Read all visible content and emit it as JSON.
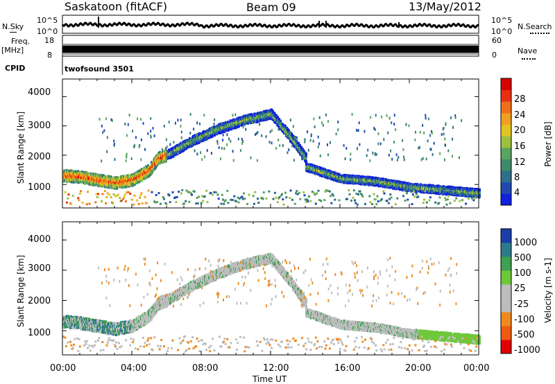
{
  "header": {
    "station": "Saskatoon (fitACF)",
    "beam": "Beam 09",
    "date": "13/May/2012"
  },
  "top_panels": {
    "nsky_label": "N.Sky",
    "nsky_ticks": [
      "10^5",
      "10^0"
    ],
    "nsearch_label": "N.Search",
    "nsearch_ticks": [
      "10^5",
      "10^0"
    ],
    "freq_label": "Freq.",
    "freq_unit": "[MHz]",
    "freq_ticks": [
      "18",
      "8"
    ],
    "nave_label": "Nave",
    "nave_ticks": [
      "60",
      "0"
    ],
    "cpid_label": "CPID",
    "cpid_text": "twofsound 3501"
  },
  "chart_data": [
    {
      "type": "heatmap",
      "name": "power-panel",
      "xlabel": "Time UT",
      "ylabel": "Slant Range [km]",
      "xticks": [
        "00:00",
        "04:00",
        "08:00",
        "12:00",
        "16:00",
        "20:00",
        "00:00"
      ],
      "xlim_hours": [
        0,
        24
      ],
      "yticks": [
        "4000",
        "3000",
        "2000",
        "1000"
      ],
      "ylim": [
        200,
        4600
      ],
      "colorbar": {
        "label": "Power [dB]",
        "ticks": [
          "28",
          "24",
          "20",
          "16",
          "12",
          "8",
          "4"
        ],
        "range": [
          0,
          32
        ],
        "colors": [
          "#1020e0",
          "#204ab0",
          "#2f6e8a",
          "#3f8a6a",
          "#5aa360",
          "#9cc040",
          "#e3c420",
          "#f0a020",
          "#f07018",
          "#e83010",
          "#d80000"
        ]
      },
      "features": [
        {
          "desc": "band",
          "t": [
            0,
            1,
            2,
            3,
            4,
            5,
            5.5,
            6
          ],
          "r": [
            1300,
            1250,
            1150,
            1050,
            1150,
            1500,
            1900,
            2000
          ],
          "strength": "high"
        },
        {
          "desc": "arc",
          "t": [
            6,
            7.5,
            9,
            10.5,
            12,
            13,
            14
          ],
          "r": [
            2000,
            2500,
            2900,
            3200,
            3400,
            2700,
            1900
          ],
          "strength": "mid"
        },
        {
          "desc": "lower-band",
          "t": [
            14,
            16,
            18,
            20,
            22,
            24
          ],
          "r": [
            1600,
            1200,
            1100,
            900,
            800,
            700
          ],
          "strength": "mid"
        }
      ]
    },
    {
      "type": "heatmap",
      "name": "velocity-panel",
      "xlabel": "Time UT",
      "ylabel": "Slant Range [km]",
      "xticks": [
        "00:00",
        "04:00",
        "08:00",
        "12:00",
        "16:00",
        "20:00",
        "00:00"
      ],
      "xlim_hours": [
        0,
        24
      ],
      "yticks": [
        "4000",
        "3000",
        "2000",
        "1000"
      ],
      "ylim": [
        200,
        4600
      ],
      "colorbar": {
        "label": "Velocity [m s-1]",
        "ticks": [
          "1000",
          "500",
          "100",
          "25",
          "-25",
          "-100",
          "-500",
          "-1000"
        ],
        "colors": [
          "#1a3fa8",
          "#2e7a8a",
          "#3ea050",
          "#6ec83a",
          "#bdbdbd",
          "#bdbdbd",
          "#f08a20",
          "#f05a10",
          "#e00000"
        ]
      }
    }
  ]
}
